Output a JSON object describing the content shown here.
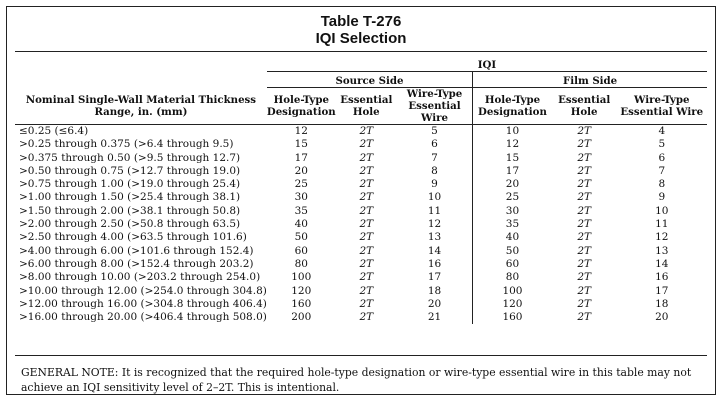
{
  "title": "Table T-276",
  "subtitle": "IQI Selection",
  "headers": {
    "range": "Nominal Single-Wall Material Thickness Range, in. (mm)",
    "iqi": "IQI",
    "source_side": "Source Side",
    "film_side": "Film Side",
    "hole_type": "Hole-Type Designation",
    "essential_hole": "Essential Hole",
    "wire_type": "Wire-Type Essential Wire"
  },
  "rows": [
    {
      "range": "≤0.25 (≤6.4)",
      "s_hole": "12",
      "s_ess": "2T",
      "s_wire": "5",
      "f_hole": "10",
      "f_ess": "2T",
      "f_wire": "4"
    },
    {
      "range": ">0.25 through 0.375 (>6.4 through 9.5)",
      "s_hole": "15",
      "s_ess": "2T",
      "s_wire": "6",
      "f_hole": "12",
      "f_ess": "2T",
      "f_wire": "5"
    },
    {
      "range": ">0.375 through 0.50 (>9.5 through 12.7)",
      "s_hole": "17",
      "s_ess": "2T",
      "s_wire": "7",
      "f_hole": "15",
      "f_ess": "2T",
      "f_wire": "6"
    },
    {
      "range": ">0.50 through 0.75 (>12.7 through 19.0)",
      "s_hole": "20",
      "s_ess": "2T",
      "s_wire": "8",
      "f_hole": "17",
      "f_ess": "2T",
      "f_wire": "7"
    },
    {
      "range": ">0.75 through 1.00 (>19.0 through 25.4)",
      "s_hole": "25",
      "s_ess": "2T",
      "s_wire": "9",
      "f_hole": "20",
      "f_ess": "2T",
      "f_wire": "8"
    },
    {
      "range": ">1.00 through 1.50 (>25.4 through 38.1)",
      "s_hole": "30",
      "s_ess": "2T",
      "s_wire": "10",
      "f_hole": "25",
      "f_ess": "2T",
      "f_wire": "9"
    },
    {
      "range": ">1.50 through 2.00 (>38.1 through 50.8)",
      "s_hole": "35",
      "s_ess": "2T",
      "s_wire": "11",
      "f_hole": "30",
      "f_ess": "2T",
      "f_wire": "10"
    },
    {
      "range": ">2.00 through 2.50 (>50.8 through 63.5)",
      "s_hole": "40",
      "s_ess": "2T",
      "s_wire": "12",
      "f_hole": "35",
      "f_ess": "2T",
      "f_wire": "11"
    },
    {
      "range": ">2.50 through 4.00 (>63.5 through 101.6)",
      "s_hole": "50",
      "s_ess": "2T",
      "s_wire": "13",
      "f_hole": "40",
      "f_ess": "2T",
      "f_wire": "12"
    },
    {
      "range": ">4.00 through 6.00 (>101.6 through 152.4)",
      "s_hole": "60",
      "s_ess": "2T",
      "s_wire": "14",
      "f_hole": "50",
      "f_ess": "2T",
      "f_wire": "13"
    },
    {
      "range": ">6.00 through 8.00 (>152.4 through 203.2)",
      "s_hole": "80",
      "s_ess": "2T",
      "s_wire": "16",
      "f_hole": "60",
      "f_ess": "2T",
      "f_wire": "14"
    },
    {
      "range": ">8.00 through 10.00 (>203.2 through 254.0)",
      "s_hole": "100",
      "s_ess": "2T",
      "s_wire": "17",
      "f_hole": "80",
      "f_ess": "2T",
      "f_wire": "16"
    },
    {
      "range": ">10.00 through 12.00 (>254.0 through 304.8)",
      "s_hole": "120",
      "s_ess": "2T",
      "s_wire": "18",
      "f_hole": "100",
      "f_ess": "2T",
      "f_wire": "17"
    },
    {
      "range": ">12.00 through 16.00 (>304.8 through 406.4)",
      "s_hole": "160",
      "s_ess": "2T",
      "s_wire": "20",
      "f_hole": "120",
      "f_ess": "2T",
      "f_wire": "18"
    },
    {
      "range": ">16.00 through 20.00 (>406.4 through 508.0)",
      "s_hole": "200",
      "s_ess": "2T",
      "s_wire": "21",
      "f_hole": "160",
      "f_ess": "2T",
      "f_wire": "20"
    }
  ],
  "note": "GENERAL NOTE:   It is recognized that the required hole-type designation or wire-type essential wire in this table may not achieve an IQI sensitivity level of 2–2T. This is intentional."
}
